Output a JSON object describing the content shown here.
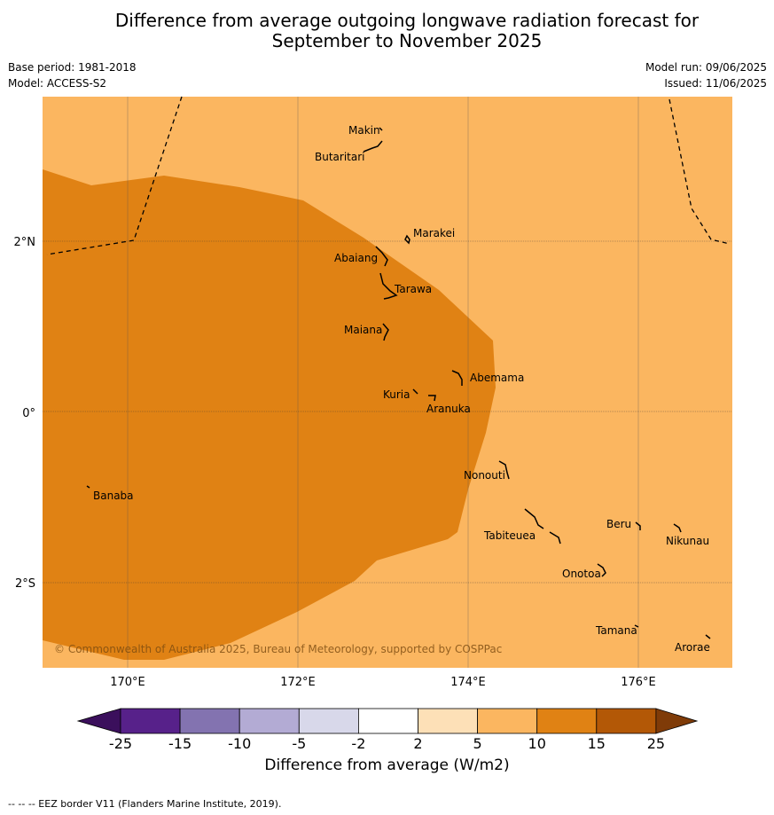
{
  "title_line1": "Difference from average outgoing longwave radiation forecast for",
  "title_line2": "September to November 2025",
  "base_period": "Base period: 1981-2018",
  "model": "Model: ACCESS-S2",
  "model_run": "Model run: 09/06/2025",
  "issued": "Issued: 11/06/2025",
  "copyright": "© Commonwealth of Australia 2025, Bureau of Meteorology, supported by COSPPac",
  "lat_labels": [
    "2°N",
    "0°",
    "2°S"
  ],
  "lon_labels": [
    "170°E",
    "172°E",
    "174°E",
    "176°E"
  ],
  "places": [
    "Makin",
    "Butaritari",
    "Marakei",
    "Abaiang",
    "Tarawa",
    "Maiana",
    "Abemama",
    "Kuria",
    "Aranuka",
    "Nonouti",
    "Banaba",
    "Beru",
    "Nikunau",
    "Tabiteuea",
    "Onotoa",
    "Tamana",
    "Arorae"
  ],
  "colorbar": {
    "ticks": [
      "-25",
      "-15",
      "-10",
      "-5",
      "-2",
      "2",
      "5",
      "10",
      "15",
      "25"
    ],
    "colors": [
      "#3b0f5c",
      "#57218a",
      "#8373b0",
      "#b3abd4",
      "#d8d8ea",
      "#ffffff",
      "#fde0b7",
      "#fbb660",
      "#e08214",
      "#b35806",
      "#7f3b08"
    ],
    "label": "Difference from average (W/m2)"
  },
  "footer": "-- -- -- EEZ border V11 (Flanders Marine Institute, 2019)."
}
